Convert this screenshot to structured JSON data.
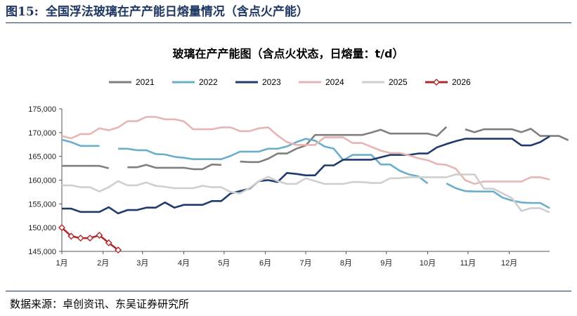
{
  "figure": {
    "number": "图15:",
    "title": "全国浮法玻璃在产产能日熔量情况（含点火产能）",
    "source": "数据来源：卓创资讯、东吴证券研究所"
  },
  "chart_data": {
    "type": "line",
    "title": "玻璃在产产能图（含点火状态，日熔量：t/d）",
    "xlabel": "",
    "ylabel": "",
    "ylim": [
      145000,
      175000
    ],
    "yticks": [
      145000,
      150000,
      155000,
      160000,
      165000,
      170000,
      175000
    ],
    "ytick_labels": [
      "145,000",
      "150,000",
      "155,000",
      "160,000",
      "165,000",
      "170,000",
      "175,000"
    ],
    "xlim": [
      1,
      53
    ],
    "xticks": [
      1,
      5.4,
      9.6,
      14,
      18.3,
      22.7,
      27,
      31.3,
      35.6,
      40,
      44.3,
      48.7
    ],
    "xtick_labels": [
      "1月",
      "2月",
      "3月",
      "4月",
      "5月",
      "6月",
      "7月",
      "8月",
      "9月",
      "10月",
      "11月",
      "12月"
    ],
    "x_unit": "week",
    "grid": false,
    "legend_position": "top",
    "series": [
      {
        "name": "2021",
        "color": "#7f7f7f",
        "values": [
          163000,
          163000,
          163000,
          163000,
          163000,
          162500,
          null,
          162700,
          162700,
          163200,
          162600,
          162600,
          162600,
          162600,
          162300,
          162300,
          163300,
          163200,
          null,
          163900,
          163800,
          163800,
          164500,
          165600,
          165600,
          166600,
          167300,
          169500,
          169500,
          169500,
          169500,
          169500,
          169500,
          170000,
          170600,
          169800,
          169800,
          169800,
          169800,
          169800,
          169300,
          171200,
          null,
          170700,
          170100,
          170700,
          170700,
          170700,
          170700,
          170100,
          170800,
          169300,
          169300,
          169300,
          168400
        ]
      },
      {
        "name": "2022",
        "color": "#6aaecb",
        "values": [
          168500,
          168000,
          167200,
          167200,
          167200,
          null,
          166600,
          166600,
          166300,
          166300,
          165500,
          165400,
          164900,
          164700,
          164400,
          164400,
          164400,
          164400,
          165100,
          166000,
          166000,
          166000,
          166600,
          166600,
          167100,
          168000,
          168700,
          168300,
          167100,
          166600,
          164200,
          165300,
          165300,
          165300,
          163300,
          163300,
          162000,
          161200,
          160800,
          159300,
          null,
          159300,
          158300,
          157700,
          157600,
          157600,
          157600,
          156300,
          155700,
          155300,
          155200,
          155200,
          154100
        ]
      },
      {
        "name": "2023",
        "color": "#1f3b6e",
        "values": [
          154000,
          154000,
          153300,
          153300,
          153300,
          154300,
          153000,
          153700,
          153700,
          154200,
          154200,
          155300,
          154200,
          154800,
          154800,
          154800,
          155600,
          155600,
          157200,
          157700,
          158200,
          159800,
          160000,
          159600,
          161500,
          161300,
          161000,
          161000,
          163100,
          163100,
          164300,
          164300,
          164300,
          164300,
          164800,
          165300,
          165300,
          165300,
          165600,
          165600,
          166900,
          167600,
          168200,
          168700,
          168700,
          168700,
          168700,
          168700,
          168700,
          167300,
          167300,
          168000,
          169200
        ]
      },
      {
        "name": "2024",
        "color": "#e8b4b4",
        "values": [
          169300,
          168800,
          169700,
          169700,
          170900,
          170500,
          171100,
          172400,
          172400,
          173300,
          173300,
          172800,
          172800,
          172400,
          170700,
          170700,
          170700,
          171100,
          171100,
          170300,
          170300,
          170900,
          171100,
          169400,
          168000,
          167400,
          167400,
          167400,
          169000,
          169000,
          169000,
          167800,
          167800,
          167000,
          166200,
          165700,
          165700,
          165200,
          164600,
          164200,
          163400,
          163200,
          162400,
          160000,
          159200,
          159700,
          159700,
          159700,
          159700,
          159700,
          160600,
          160600,
          160100
        ]
      },
      {
        "name": "2025",
        "color": "#cfcfcf",
        "values": [
          158900,
          158900,
          158500,
          158500,
          157600,
          158500,
          159800,
          158900,
          158900,
          159500,
          158800,
          158600,
          158300,
          158300,
          158300,
          158800,
          158500,
          158500,
          157500,
          157200,
          158300,
          159800,
          160700,
          159800,
          159200,
          159200,
          160400,
          159800,
          159200,
          159200,
          159200,
          159600,
          159600,
          159400,
          159400,
          160400,
          160400,
          160600,
          160600,
          160600,
          160600,
          160600,
          161200,
          161200,
          161200,
          158200,
          158200,
          157200,
          156200,
          153500,
          154100,
          154100,
          153200
        ]
      },
      {
        "name": "2026",
        "color": "#b0282d",
        "marker": "diamond",
        "values": [
          150000,
          148200,
          147800,
          147800,
          148400,
          146800,
          145300
        ]
      }
    ]
  }
}
